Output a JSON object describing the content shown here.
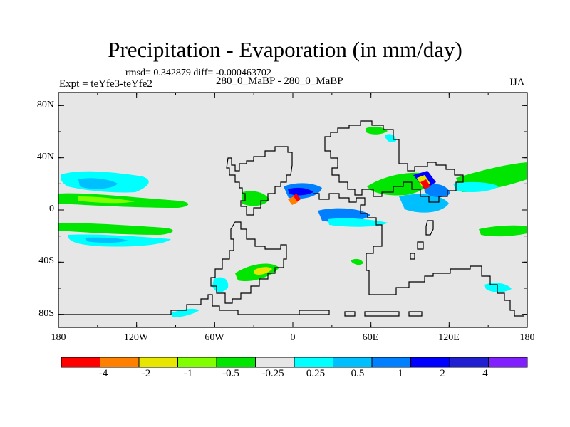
{
  "header": {
    "title": "Precipitation - Evaporation (in mm/day)",
    "stats": "rmsd= 0.342879  diff= -0.000463702",
    "experiment": "Expt = teYfe3-teYfe2",
    "case": "280_0_MaBP - 280_0_MaBP",
    "season": "JJA"
  },
  "map": {
    "lat_ticks": [
      "80N",
      "40N",
      "0",
      "40S",
      "80S"
    ],
    "lat_values": [
      80,
      40,
      0,
      -40,
      -80
    ],
    "lon_ticks": [
      "180",
      "120W",
      "60W",
      "0",
      "60E",
      "120E",
      "180"
    ],
    "lon_values": [
      -180,
      -120,
      -60,
      0,
      60,
      120,
      180
    ],
    "background_color": "#e6e6e6",
    "coastline_color": "#000000"
  },
  "colorbar": {
    "colors": [
      "#ff0000",
      "#ff8000",
      "#e6e600",
      "#80ff00",
      "#00e600",
      "#e6e6e6",
      "#00ffff",
      "#00bfff",
      "#0080ff",
      "#0000ff",
      "#2020d0",
      "#8020ff"
    ],
    "labels": [
      "-4",
      "-2",
      "-1",
      "-0.5",
      "-0.25",
      "0.25",
      "0.5",
      "1",
      "2",
      "4"
    ]
  }
}
